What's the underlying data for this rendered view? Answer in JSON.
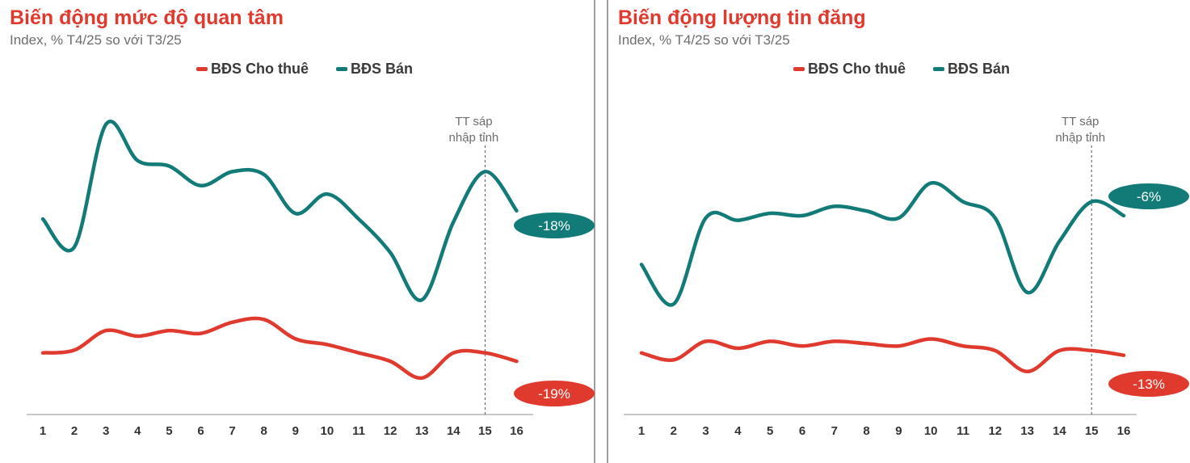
{
  "colors": {
    "rent": "#e03a2f",
    "sale": "#127b78",
    "axis": "#a8a8a8",
    "label": "#333333",
    "annotation": "#6d6d6d"
  },
  "legend": {
    "rent_label": "BĐS Cho thuê",
    "sale_label": "BĐS Bán"
  },
  "chart_data": [
    {
      "type": "line",
      "title": "Biến động mức độ quan tâm",
      "subtitle": "Index, % T4/25 so với T3/25",
      "x": [
        1,
        2,
        3,
        4,
        5,
        6,
        7,
        8,
        9,
        10,
        11,
        12,
        13,
        14,
        15,
        16
      ],
      "ylim": [
        0,
        100
      ],
      "series": [
        {
          "name": "BĐS Cho thuê",
          "values": [
            14,
            15,
            22,
            20,
            22,
            21,
            25,
            26,
            19,
            17,
            14,
            11,
            5,
            14,
            14,
            11
          ],
          "end_label": "-19%"
        },
        {
          "name": "BĐS Bán",
          "values": [
            62,
            52,
            96,
            83,
            81,
            74,
            79,
            78,
            64,
            71,
            62,
            50,
            33,
            61,
            79,
            65
          ],
          "end_label": "-18%"
        }
      ],
      "annotation": {
        "x": 15,
        "line1": "TT sáp",
        "line2": "nhập tỉnh"
      },
      "grid": false
    },
    {
      "type": "line",
      "title": "Biến động lượng tin đăng",
      "subtitle": "Index, % T4/25 so với T3/25",
      "x": [
        1,
        2,
        3,
        4,
        5,
        6,
        7,
        8,
        9,
        10,
        11,
        12,
        13,
        14,
        15,
        16
      ],
      "ylim": [
        0,
        100
      ],
      "series": [
        {
          "name": "BĐS Cho thuê",
          "values": [
            15,
            12,
            20,
            17,
            20,
            18,
            20,
            19,
            18,
            21,
            18,
            16,
            7,
            16,
            16,
            14
          ],
          "end_label": "-13%"
        },
        {
          "name": "BĐS Bán",
          "values": [
            53,
            36,
            73,
            72,
            75,
            74,
            78,
            76,
            73,
            88,
            80,
            73,
            41,
            63,
            80,
            74
          ],
          "end_label": "-6%"
        }
      ],
      "annotation": {
        "x": 15,
        "line1": "TT sáp",
        "line2": "nhập tỉnh"
      },
      "grid": false
    }
  ]
}
